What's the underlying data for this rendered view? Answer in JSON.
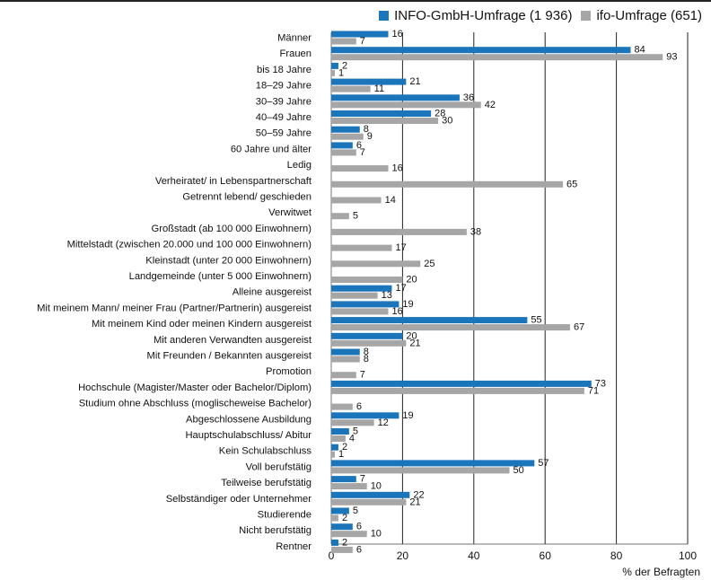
{
  "chart_data": {
    "type": "bar",
    "orientation": "horizontal",
    "categories": [
      "Männer",
      "Frauen",
      "bis 18 Jahre",
      "18–29 Jahre",
      "30–39 Jahre",
      "40–49 Jahre",
      "50–59 Jahre",
      "60 Jahre und älter",
      "Ledig",
      "Verheiratet/ in Lebenspartnerschaft",
      "Getrennt lebend/ geschieden",
      "Verwitwet",
      "Großstadt (ab 100 000 Einwohnern)",
      "Mittelstadt (zwischen 20.000 und 100 000 Einwohnern)",
      "Kleinstadt (unter 20 000 Einwohnern)",
      "Landgemeinde (unter 5 000 Einwohnern)",
      "Alleine  ausgereist",
      "Mit meinem Mann/ meiner Frau (Partner/Partnerin) ausgereist",
      "Mit meinem Kind oder meinen Kindern ausgereist",
      "Mit anderen Verwandten ausgereist",
      "Mit Freunden / Bekannten ausgereist",
      "Promotion",
      "Hochschule (Magister/Master oder Bachelor/Diplom)",
      "Studium ohne Abschluss  (moglischeweise Bachelor)",
      "Abgeschlossene Ausbildung",
      "Hauptschulabschluss/ Abitur",
      "Kein Schulabschluss",
      "Voll berufstätig",
      "Teilweise berufstätig",
      "Selbständiger oder Unternehmer",
      "Studierende",
      "Nicht berufstätig",
      "Rentner"
    ],
    "series": [
      {
        "name": "INFO-GmbH-Umfrage (1 936)",
        "color": "#1b75bb",
        "values": [
          16,
          84,
          2,
          21,
          36,
          28,
          8,
          6,
          null,
          null,
          null,
          null,
          null,
          null,
          null,
          null,
          17,
          19,
          55,
          20,
          8,
          null,
          73,
          null,
          19,
          5,
          2,
          57,
          7,
          22,
          5,
          6,
          2
        ]
      },
      {
        "name": "ifo-Umfrage (651)",
        "color": "#a6a6a6",
        "values": [
          7,
          93,
          1,
          11,
          42,
          30,
          9,
          7,
          16,
          65,
          14,
          5,
          38,
          17,
          25,
          20,
          13,
          16,
          67,
          21,
          8,
          7,
          71,
          6,
          12,
          4,
          1,
          50,
          10,
          21,
          2,
          10,
          6
        ]
      }
    ],
    "xlim": [
      0,
      100
    ],
    "xticks": [
      "0",
      "20",
      "40",
      "60",
      "80",
      "100"
    ],
    "xlabel": "% der  Befragten",
    "grid": true,
    "legend": "top-right"
  }
}
